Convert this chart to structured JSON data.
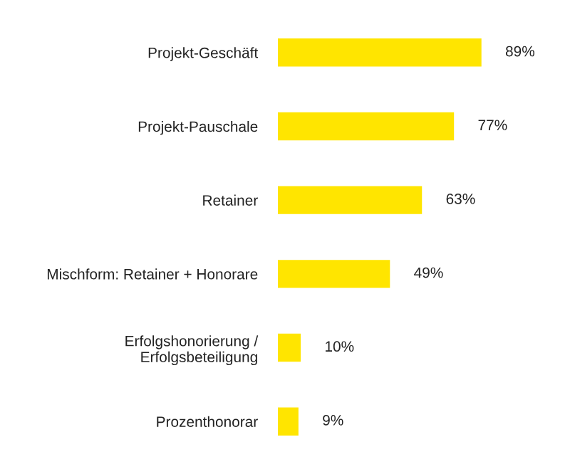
{
  "chart_data": {
    "type": "bar",
    "orientation": "horizontal",
    "categories": [
      "Projekt-Geschäft",
      "Projekt-Pauschale",
      "Retainer",
      "Mischform: Retainer + Honorare",
      "Erfolgshonorierung /\nErfolgsbeteiligung",
      "Prozenthonorar"
    ],
    "values": [
      89,
      77,
      63,
      49,
      10,
      9
    ],
    "value_labels": [
      "89%",
      "77%",
      "63%",
      "49%",
      "10%",
      "9%"
    ],
    "color": "#ffe500",
    "grid": false,
    "legend": false
  }
}
